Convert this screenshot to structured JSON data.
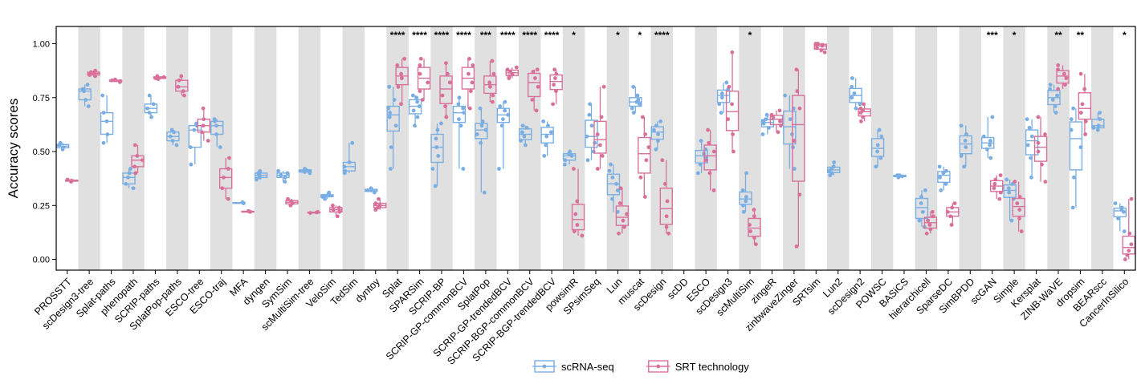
{
  "chart_data": {
    "type": "box",
    "title": "",
    "xlabel": "",
    "ylabel": "Accuracy scores",
    "ylim": [
      -0.05,
      1.08
    ],
    "yticks": [
      "0.00",
      "0.25",
      "0.50",
      "0.75",
      "1.00"
    ],
    "grid": "alternating grey column shading",
    "legend_position": "bottom-center",
    "colors": {
      "scRNA-seq": "#7aaee3",
      "SRT technology": "#d9709a",
      "shade": "#e0e0e0"
    },
    "legend": [
      {
        "key": "rna",
        "label": "scRNA-seq"
      },
      {
        "key": "srt",
        "label": "SRT technology"
      }
    ],
    "categories": [
      {
        "name": "PROSSTT",
        "sig": "",
        "rna": [
          0.51,
          0.52,
          0.53,
          0.54
        ],
        "srt": [
          0.36,
          0.365,
          0.37
        ]
      },
      {
        "name": "scDesign3-tree",
        "sig": "",
        "rna": [
          0.71,
          0.74,
          0.78,
          0.79,
          0.81
        ],
        "srt": [
          0.85,
          0.855,
          0.862,
          0.868,
          0.875
        ]
      },
      {
        "name": "Splat-paths",
        "sig": "",
        "rna": [
          0.54,
          0.58,
          0.64,
          0.68,
          0.76
        ],
        "srt": [
          0.822,
          0.826,
          0.83,
          0.834
        ]
      },
      {
        "name": "phenopath",
        "sig": "",
        "rna": [
          0.33,
          0.35,
          0.38,
          0.4,
          0.42
        ],
        "srt": [
          0.4,
          0.43,
          0.46,
          0.48,
          0.53
        ]
      },
      {
        "name": "SCRIP-paths",
        "sig": "",
        "rna": [
          0.66,
          0.68,
          0.7,
          0.72,
          0.76
        ],
        "srt": [
          0.836,
          0.84,
          0.845,
          0.85
        ]
      },
      {
        "name": "SplatPop-paths",
        "sig": "",
        "rna": [
          0.53,
          0.55,
          0.57,
          0.59,
          0.6
        ],
        "srt": [
          0.76,
          0.78,
          0.8,
          0.83,
          0.85
        ]
      },
      {
        "name": "ESCO-tree",
        "sig": "",
        "rna": [
          0.44,
          0.52,
          0.6,
          0.62,
          0.63
        ],
        "srt": [
          0.55,
          0.59,
          0.62,
          0.65,
          0.7
        ]
      },
      {
        "name": "ESCO-traj",
        "sig": "",
        "rna": [
          0.52,
          0.58,
          0.62,
          0.64,
          0.65
        ],
        "srt": [
          0.28,
          0.33,
          0.38,
          0.42,
          0.47
        ]
      },
      {
        "name": "MFA",
        "sig": "",
        "rna": [
          0.26,
          0.262,
          0.265
        ],
        "srt": [
          0.22,
          0.222,
          0.224
        ]
      },
      {
        "name": "dyngen",
        "sig": "",
        "rna": [
          0.37,
          0.38,
          0.39,
          0.4,
          0.41
        ],
        "srt": []
      },
      {
        "name": "SymSim",
        "sig": "",
        "rna": [
          0.36,
          0.38,
          0.39,
          0.4,
          0.41
        ],
        "srt": [
          0.25,
          0.26,
          0.27,
          0.28
        ]
      },
      {
        "name": "scMultiSim-tree",
        "sig": "",
        "rna": [
          0.4,
          0.405,
          0.41,
          0.415,
          0.42
        ],
        "srt": [
          0.215,
          0.218,
          0.22
        ]
      },
      {
        "name": "VeloSim",
        "sig": "",
        "rna": [
          0.28,
          0.29,
          0.295,
          0.3,
          0.31
        ],
        "srt": [
          0.2,
          0.22,
          0.23,
          0.24,
          0.25
        ]
      },
      {
        "name": "TedSim",
        "sig": "",
        "rna": [
          0.4,
          0.41,
          0.43,
          0.45,
          0.54
        ],
        "srt": []
      },
      {
        "name": "dyntoy",
        "sig": "",
        "rna": [
          0.31,
          0.32,
          0.33
        ],
        "srt": [
          0.23,
          0.24,
          0.25,
          0.26,
          0.28
        ]
      },
      {
        "name": "Splat",
        "sig": "****",
        "rna": [
          0.42,
          0.52,
          0.62,
          0.66,
          0.68,
          0.7,
          0.74,
          0.8
        ],
        "srt": [
          0.72,
          0.8,
          0.84,
          0.86,
          0.9,
          0.93
        ]
      },
      {
        "name": "SPARSim",
        "sig": "****",
        "rna": [
          0.62,
          0.66,
          0.69,
          0.71,
          0.73,
          0.75,
          0.76
        ],
        "srt": [
          0.74,
          0.78,
          0.82,
          0.86,
          0.9,
          0.93
        ]
      },
      {
        "name": "SCRIP-BP",
        "sig": "****",
        "rna": [
          0.34,
          0.42,
          0.48,
          0.52,
          0.56,
          0.6,
          0.63
        ],
        "srt": [
          0.66,
          0.71,
          0.76,
          0.82,
          0.86,
          0.91
        ]
      },
      {
        "name": "SCRIP-GP-commonBCV",
        "sig": "****",
        "rna": [
          0.42,
          0.62,
          0.65,
          0.68,
          0.7,
          0.72,
          0.75
        ],
        "srt": [
          0.7,
          0.78,
          0.82,
          0.86,
          0.9,
          0.93
        ]
      },
      {
        "name": "SplatPop",
        "sig": "***",
        "rna": [
          0.31,
          0.54,
          0.58,
          0.6,
          0.62,
          0.64,
          0.7
        ],
        "srt": [
          0.73,
          0.76,
          0.8,
          0.82,
          0.86,
          0.92
        ]
      },
      {
        "name": "SCRIP-GP-trendedBCV",
        "sig": "****",
        "rna": [
          0.42,
          0.62,
          0.65,
          0.67,
          0.69,
          0.71,
          0.73
        ],
        "srt": [
          0.84,
          0.85,
          0.86,
          0.87,
          0.88,
          0.89
        ]
      },
      {
        "name": "SCRIP-BGP-commonBCV",
        "sig": "****",
        "rna": [
          0.53,
          0.55,
          0.57,
          0.59,
          0.61,
          0.62
        ],
        "srt": [
          0.69,
          0.74,
          0.8,
          0.84,
          0.87,
          0.88
        ]
      },
      {
        "name": "SCRIP-BGP-trendedBCV",
        "sig": "****",
        "rna": [
          0.48,
          0.53,
          0.57,
          0.59,
          0.62,
          0.64
        ],
        "srt": [
          0.72,
          0.78,
          0.81,
          0.84,
          0.86,
          0.88
        ]
      },
      {
        "name": "powsimR",
        "sig": "*",
        "rna": [
          0.44,
          0.46,
          0.48,
          0.49,
          0.5
        ],
        "srt": [
          0.11,
          0.13,
          0.16,
          0.21,
          0.27,
          0.42
        ]
      },
      {
        "name": "SPsimSeq",
        "sig": "",
        "rna": [
          0.46,
          0.5,
          0.54,
          0.57,
          0.62,
          0.67,
          0.72
        ],
        "srt": [
          0.42,
          0.48,
          0.53,
          0.58,
          0.66,
          0.8
        ]
      },
      {
        "name": "Lun",
        "sig": "*",
        "rna": [
          0.22,
          0.28,
          0.32,
          0.35,
          0.38,
          0.41,
          0.44
        ],
        "srt": [
          0.12,
          0.15,
          0.18,
          0.21,
          0.26,
          0.33
        ]
      },
      {
        "name": "muscat",
        "sig": "*",
        "rna": [
          0.68,
          0.7,
          0.72,
          0.73,
          0.74,
          0.76,
          0.8
        ],
        "srt": [
          0.29,
          0.38,
          0.46,
          0.52,
          0.58,
          0.66
        ]
      },
      {
        "name": "scDesign",
        "sig": "****",
        "rna": [
          0.51,
          0.55,
          0.58,
          0.6,
          0.62,
          0.64
        ],
        "srt": [
          0.12,
          0.15,
          0.2,
          0.27,
          0.35,
          0.46
        ]
      },
      {
        "name": "scDD",
        "sig": "",
        "rna": [],
        "srt": []
      },
      {
        "name": "ESCO",
        "sig": "",
        "rna": [
          0.4,
          0.44,
          0.47,
          0.49,
          0.51,
          0.55
        ],
        "srt": [
          0.32,
          0.4,
          0.46,
          0.5,
          0.54,
          0.6
        ]
      },
      {
        "name": "scDesign3",
        "sig": "",
        "rna": [
          0.68,
          0.72,
          0.75,
          0.77,
          0.79,
          0.82
        ],
        "srt": [
          0.5,
          0.58,
          0.65,
          0.72,
          0.8,
          0.96
        ]
      },
      {
        "name": "scMultiSim",
        "sig": "*",
        "rna": [
          0.22,
          0.25,
          0.27,
          0.29,
          0.32,
          0.4
        ],
        "srt": [
          0.07,
          0.1,
          0.13,
          0.16,
          0.2,
          0.23
        ]
      },
      {
        "name": "zingeR",
        "sig": "",
        "rna": [
          0.58,
          0.61,
          0.63,
          0.64,
          0.65,
          0.67
        ],
        "srt": [
          0.59,
          0.62,
          0.64,
          0.66,
          0.67,
          0.69
        ]
      },
      {
        "name": "zinbwaveZinger",
        "sig": "",
        "rna": [
          0.42,
          0.52,
          0.58,
          0.65,
          0.7,
          0.76
        ],
        "srt": [
          0.06,
          0.3,
          0.55,
          0.7,
          0.78,
          0.88
        ]
      },
      {
        "name": "SRTsim",
        "sig": "",
        "rna": [],
        "srt": [
          0.96,
          0.97,
          0.98,
          0.99,
          0.995,
          1.0,
          1.0
        ]
      },
      {
        "name": "Lun2",
        "sig": "",
        "rna": [
          0.39,
          0.4,
          0.41,
          0.42,
          0.43,
          0.45
        ],
        "srt": []
      },
      {
        "name": "scDesign2",
        "sig": "",
        "rna": [
          0.7,
          0.72,
          0.75,
          0.77,
          0.8,
          0.84
        ],
        "srt": [
          0.64,
          0.66,
          0.68,
          0.69,
          0.7,
          0.72
        ]
      },
      {
        "name": "POWSC",
        "sig": "",
        "rna": [
          0.43,
          0.47,
          0.5,
          0.53,
          0.57,
          0.6
        ],
        "srt": []
      },
      {
        "name": "BASiCS",
        "sig": "",
        "rna": [
          0.38,
          0.385,
          0.39,
          0.39
        ],
        "srt": []
      },
      {
        "name": "hierarchicell",
        "sig": "",
        "rna": [
          0.15,
          0.18,
          0.22,
          0.26,
          0.29,
          0.32
        ],
        "srt": [
          0.12,
          0.14,
          0.16,
          0.18,
          0.2,
          0.22
        ]
      },
      {
        "name": "SparseDC",
        "sig": "",
        "rna": [
          0.32,
          0.35,
          0.38,
          0.4,
          0.41,
          0.43
        ],
        "srt": [
          0.16,
          0.2,
          0.22,
          0.24,
          0.26
        ]
      },
      {
        "name": "SimBPDD",
        "sig": "",
        "rna": [
          0.43,
          0.48,
          0.52,
          0.55,
          0.58,
          0.62
        ],
        "srt": []
      },
      {
        "name": "scGAN",
        "sig": "***",
        "rna": [
          0.47,
          0.51,
          0.53,
          0.55,
          0.57,
          0.66
        ],
        "srt": [
          0.28,
          0.31,
          0.33,
          0.35,
          0.37,
          0.39
        ]
      },
      {
        "name": "Simple",
        "sig": "*",
        "rna": [
          0.18,
          0.28,
          0.31,
          0.33,
          0.35,
          0.37
        ],
        "srt": [
          0.13,
          0.19,
          0.23,
          0.26,
          0.29,
          0.36
        ]
      },
      {
        "name": "Kersplat",
        "sig": "",
        "rna": [
          0.38,
          0.47,
          0.53,
          0.57,
          0.61,
          0.65
        ],
        "srt": [
          0.36,
          0.44,
          0.5,
          0.54,
          0.58,
          0.66
        ]
      },
      {
        "name": "ZINB-WaVE",
        "sig": "**",
        "rna": [
          0.68,
          0.71,
          0.74,
          0.76,
          0.79,
          0.81
        ],
        "srt": [
          0.79,
          0.81,
          0.84,
          0.86,
          0.88,
          0.9
        ]
      },
      {
        "name": "dropsim",
        "sig": "**",
        "rna": [
          0.24,
          0.38,
          0.52,
          0.6,
          0.65,
          0.7
        ],
        "srt": [
          0.58,
          0.64,
          0.68,
          0.72,
          0.79,
          0.86
        ]
      },
      {
        "name": "BEARscc",
        "sig": "",
        "rna": [
          0.6,
          0.61,
          0.62,
          0.65,
          0.68
        ],
        "srt": []
      },
      {
        "name": "CancerInSilico",
        "sig": "*",
        "rna": [
          0.13,
          0.19,
          0.22,
          0.23,
          0.24,
          0.26
        ],
        "srt": [
          0.0,
          0.02,
          0.04,
          0.07,
          0.12,
          0.28
        ]
      }
    ]
  }
}
